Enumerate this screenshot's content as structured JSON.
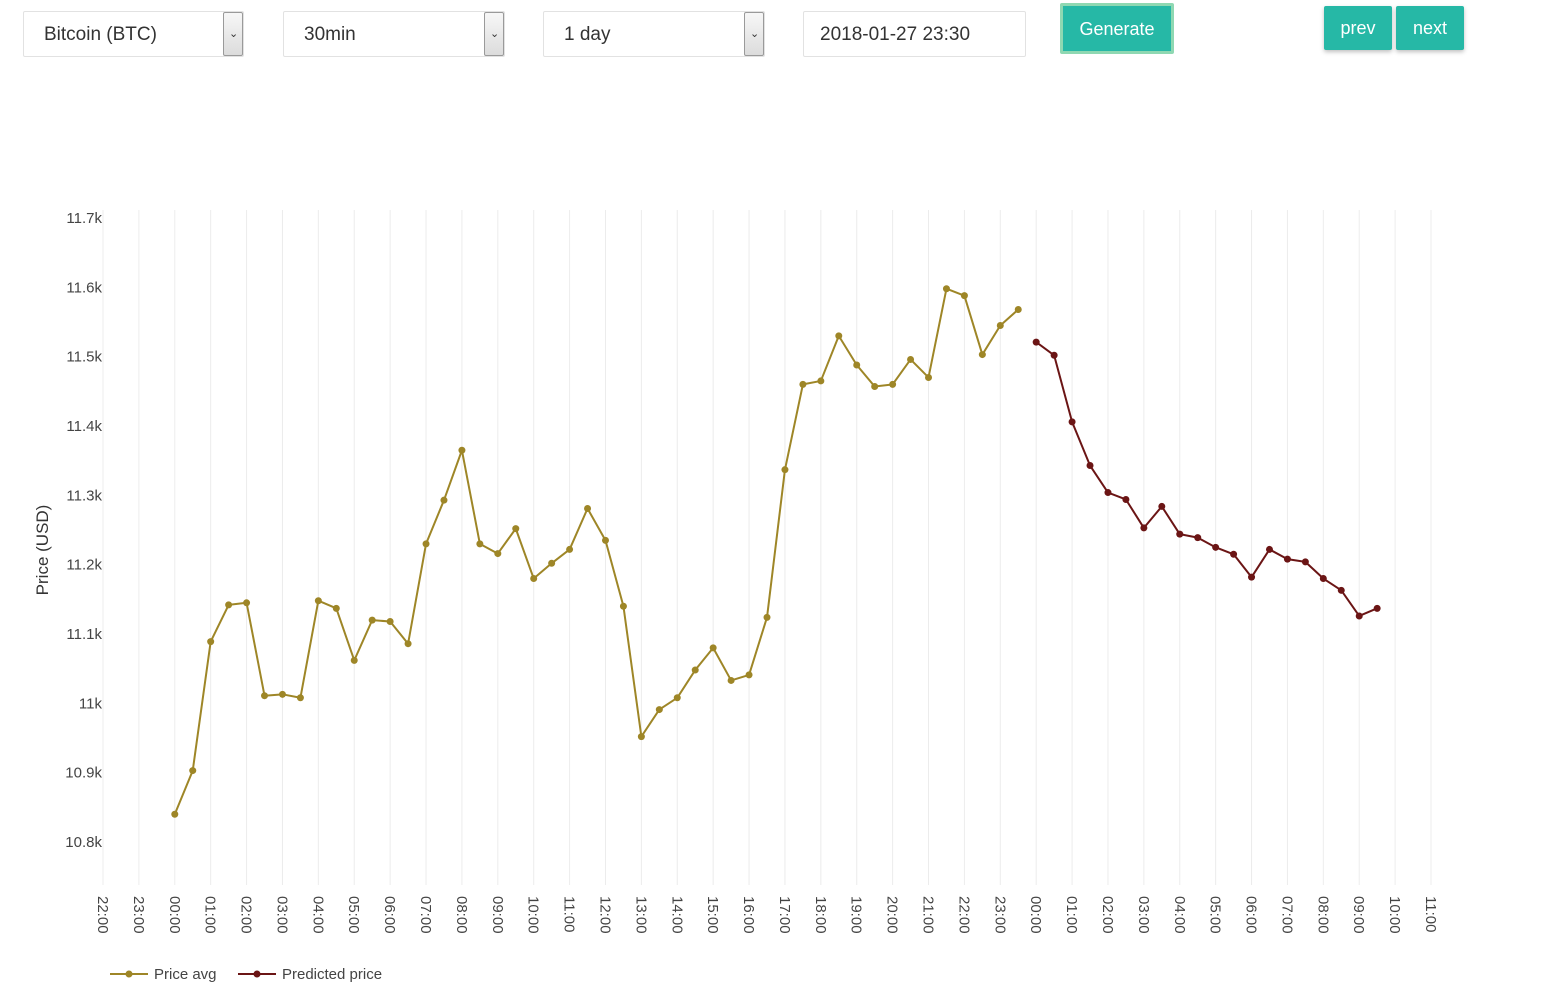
{
  "controls": {
    "currency": {
      "value": "Bitcoin (BTC)"
    },
    "interval": {
      "value": "30min"
    },
    "range": {
      "value": "1 day"
    },
    "date": {
      "value": "2018-01-27 23:30"
    },
    "generate_label": "Generate",
    "prev_label": "prev",
    "next_label": "next"
  },
  "colors": {
    "accent": "#26b8a6",
    "price_avg": "#9e8627",
    "predicted": "#6b1515"
  },
  "chart_data": {
    "type": "line",
    "title": "",
    "xlabel": "",
    "ylabel": "Price (USD)",
    "ylim": [
      10800,
      11700
    ],
    "yticks": [
      10800,
      10900,
      11000,
      11100,
      11200,
      11300,
      11400,
      11500,
      11600,
      11700
    ],
    "ytick_labels": [
      "10.8k",
      "10.9k",
      "11k",
      "11.1k",
      "11.2k",
      "11.3k",
      "11.4k",
      "11.5k",
      "11.6k",
      "11.7k"
    ],
    "xlim": [
      "2018-01-26 22:00",
      "2018-01-28 11:00"
    ],
    "xtick_labels": [
      "22:00",
      "23:00",
      "00:00",
      "01:00",
      "02:00",
      "03:00",
      "04:00",
      "05:00",
      "06:00",
      "07:00",
      "08:00",
      "09:00",
      "10:00",
      "11:00",
      "12:00",
      "13:00",
      "14:00",
      "15:00",
      "16:00",
      "17:00",
      "18:00",
      "19:00",
      "20:00",
      "21:00",
      "22:00",
      "23:00",
      "00:00",
      "01:00",
      "02:00",
      "03:00",
      "04:00",
      "05:00",
      "06:00",
      "07:00",
      "08:00",
      "09:00",
      "10:00",
      "11:00"
    ],
    "grid": true,
    "legend_position": "bottom-left",
    "series": [
      {
        "name": "Price avg",
        "start": "2018-01-27 00:00",
        "step_minutes": 30,
        "values": [
          10840,
          10903,
          11089,
          11142,
          11145,
          11011,
          11013,
          11008,
          11148,
          11137,
          11062,
          11120,
          11118,
          11086,
          11230,
          11293,
          11365,
          11230,
          11216,
          11252,
          11180,
          11202,
          11222,
          11281,
          11235,
          11140,
          10952,
          10991,
          11008,
          11048,
          11080,
          11033,
          11041,
          11124,
          11337,
          11460,
          11465,
          11530,
          11488,
          11457,
          11460,
          11496,
          11470,
          11598,
          11588,
          11503,
          11545,
          11568
        ]
      },
      {
        "name": "Predicted price",
        "start": "2018-01-28 00:00",
        "step_minutes": 30,
        "values": [
          11521,
          11502,
          11406,
          11343,
          11304,
          11294,
          11253,
          11284,
          11244,
          11239,
          11225,
          11215,
          11182,
          11222,
          11208,
          11204,
          11180,
          11163,
          11126,
          11137
        ]
      }
    ]
  }
}
